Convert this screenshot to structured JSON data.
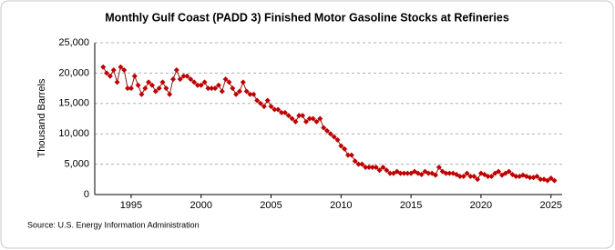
{
  "chart_data": {
    "type": "line",
    "title": "Monthly Gulf Coast (PADD 3) Finished Motor Gasoline Stocks at Refineries",
    "y_label": "Thousand Barrels",
    "source": "Source: U.S. Energy Information Administration",
    "color": "#c00000",
    "line_color": "#8b1a1a",
    "grid": true,
    "xlim": [
      1992.4,
      2025.8
    ],
    "ylim": [
      0,
      25000
    ],
    "xticks": [
      1995,
      2000,
      2005,
      2010,
      2015,
      2020,
      2025
    ],
    "yticks": [
      0,
      {
        "value": 5000,
        "label": "5,000"
      },
      {
        "value": 10000,
        "label": "10,000"
      },
      {
        "value": 15000,
        "label": "15,000"
      },
      {
        "value": 20000,
        "label": "20,000"
      },
      {
        "value": 25000,
        "label": "25,000"
      }
    ],
    "x": [
      1993,
      1993.25,
      1993.5,
      1993.75,
      1994,
      1994.25,
      1994.5,
      1994.75,
      1995,
      1995.25,
      1995.5,
      1995.75,
      1996,
      1996.25,
      1996.5,
      1996.75,
      1997,
      1997.25,
      1997.5,
      1997.75,
      1998,
      1998.25,
      1998.5,
      1998.75,
      1999,
      1999.25,
      1999.5,
      1999.75,
      2000,
      2000.25,
      2000.5,
      2000.75,
      2001,
      2001.25,
      2001.5,
      2001.75,
      2002,
      2002.25,
      2002.5,
      2002.75,
      2003,
      2003.25,
      2003.5,
      2003.75,
      2004,
      2004.25,
      2004.5,
      2004.75,
      2005,
      2005.25,
      2005.5,
      2005.75,
      2006,
      2006.25,
      2006.5,
      2006.75,
      2007,
      2007.25,
      2007.5,
      2007.75,
      2008,
      2008.25,
      2008.5,
      2008.75,
      2009,
      2009.25,
      2009.5,
      2009.75,
      2010,
      2010.25,
      2010.5,
      2010.75,
      2011,
      2011.25,
      2011.5,
      2011.75,
      2012,
      2012.25,
      2012.5,
      2012.75,
      2013,
      2013.25,
      2013.5,
      2013.75,
      2014,
      2014.25,
      2014.5,
      2014.75,
      2015,
      2015.25,
      2015.5,
      2015.75,
      2016,
      2016.25,
      2016.5,
      2016.75,
      2017,
      2017.25,
      2017.5,
      2017.75,
      2018,
      2018.25,
      2018.5,
      2018.75,
      2019,
      2019.25,
      2019.5,
      2019.75,
      2020,
      2020.25,
      2020.5,
      2020.75,
      2021,
      2021.25,
      2021.5,
      2021.75,
      2022,
      2022.25,
      2022.5,
      2022.75,
      2023,
      2023.25,
      2023.5,
      2023.75,
      2024,
      2024.25,
      2024.5,
      2024.75,
      2025,
      2025.25
    ],
    "values": [
      21000,
      20000,
      19500,
      20500,
      18500,
      21000,
      20500,
      17500,
      17500,
      19500,
      18000,
      16500,
      17500,
      18500,
      18000,
      17000,
      17500,
      18500,
      17500,
      16500,
      19000,
      20500,
      19000,
      19500,
      19500,
      19000,
      18500,
      18000,
      18000,
      18500,
      17500,
      17500,
      17500,
      18000,
      17000,
      19000,
      18500,
      17500,
      16500,
      17000,
      18500,
      17000,
      16500,
      16500,
      15500,
      15000,
      14500,
      15500,
      14500,
      14000,
      14000,
      13500,
      13500,
      13000,
      12500,
      12000,
      13000,
      13000,
      12000,
      12500,
      12500,
      12000,
      12500,
      11000,
      10500,
      10000,
      9500,
      9000,
      8000,
      7500,
      6500,
      6500,
      5500,
      5000,
      5000,
      4500,
      4500,
      4500,
      4500,
      4000,
      4500,
      4000,
      3500,
      3500,
      3800,
      3500,
      3500,
      3500,
      3500,
      3800,
      3500,
      3300,
      3800,
      3500,
      3500,
      3200,
      4500,
      3800,
      3500,
      3500,
      3500,
      3300,
      3000,
      3000,
      3500,
      3000,
      3000,
      2500,
      3500,
      3300,
      3000,
      3000,
      3500,
      3800,
      3200,
      3500,
      3800,
      3300,
      3000,
      3000,
      3200,
      3000,
      2800,
      2800,
      3000,
      2500,
      2500,
      2300,
      2700,
      2300
    ]
  }
}
